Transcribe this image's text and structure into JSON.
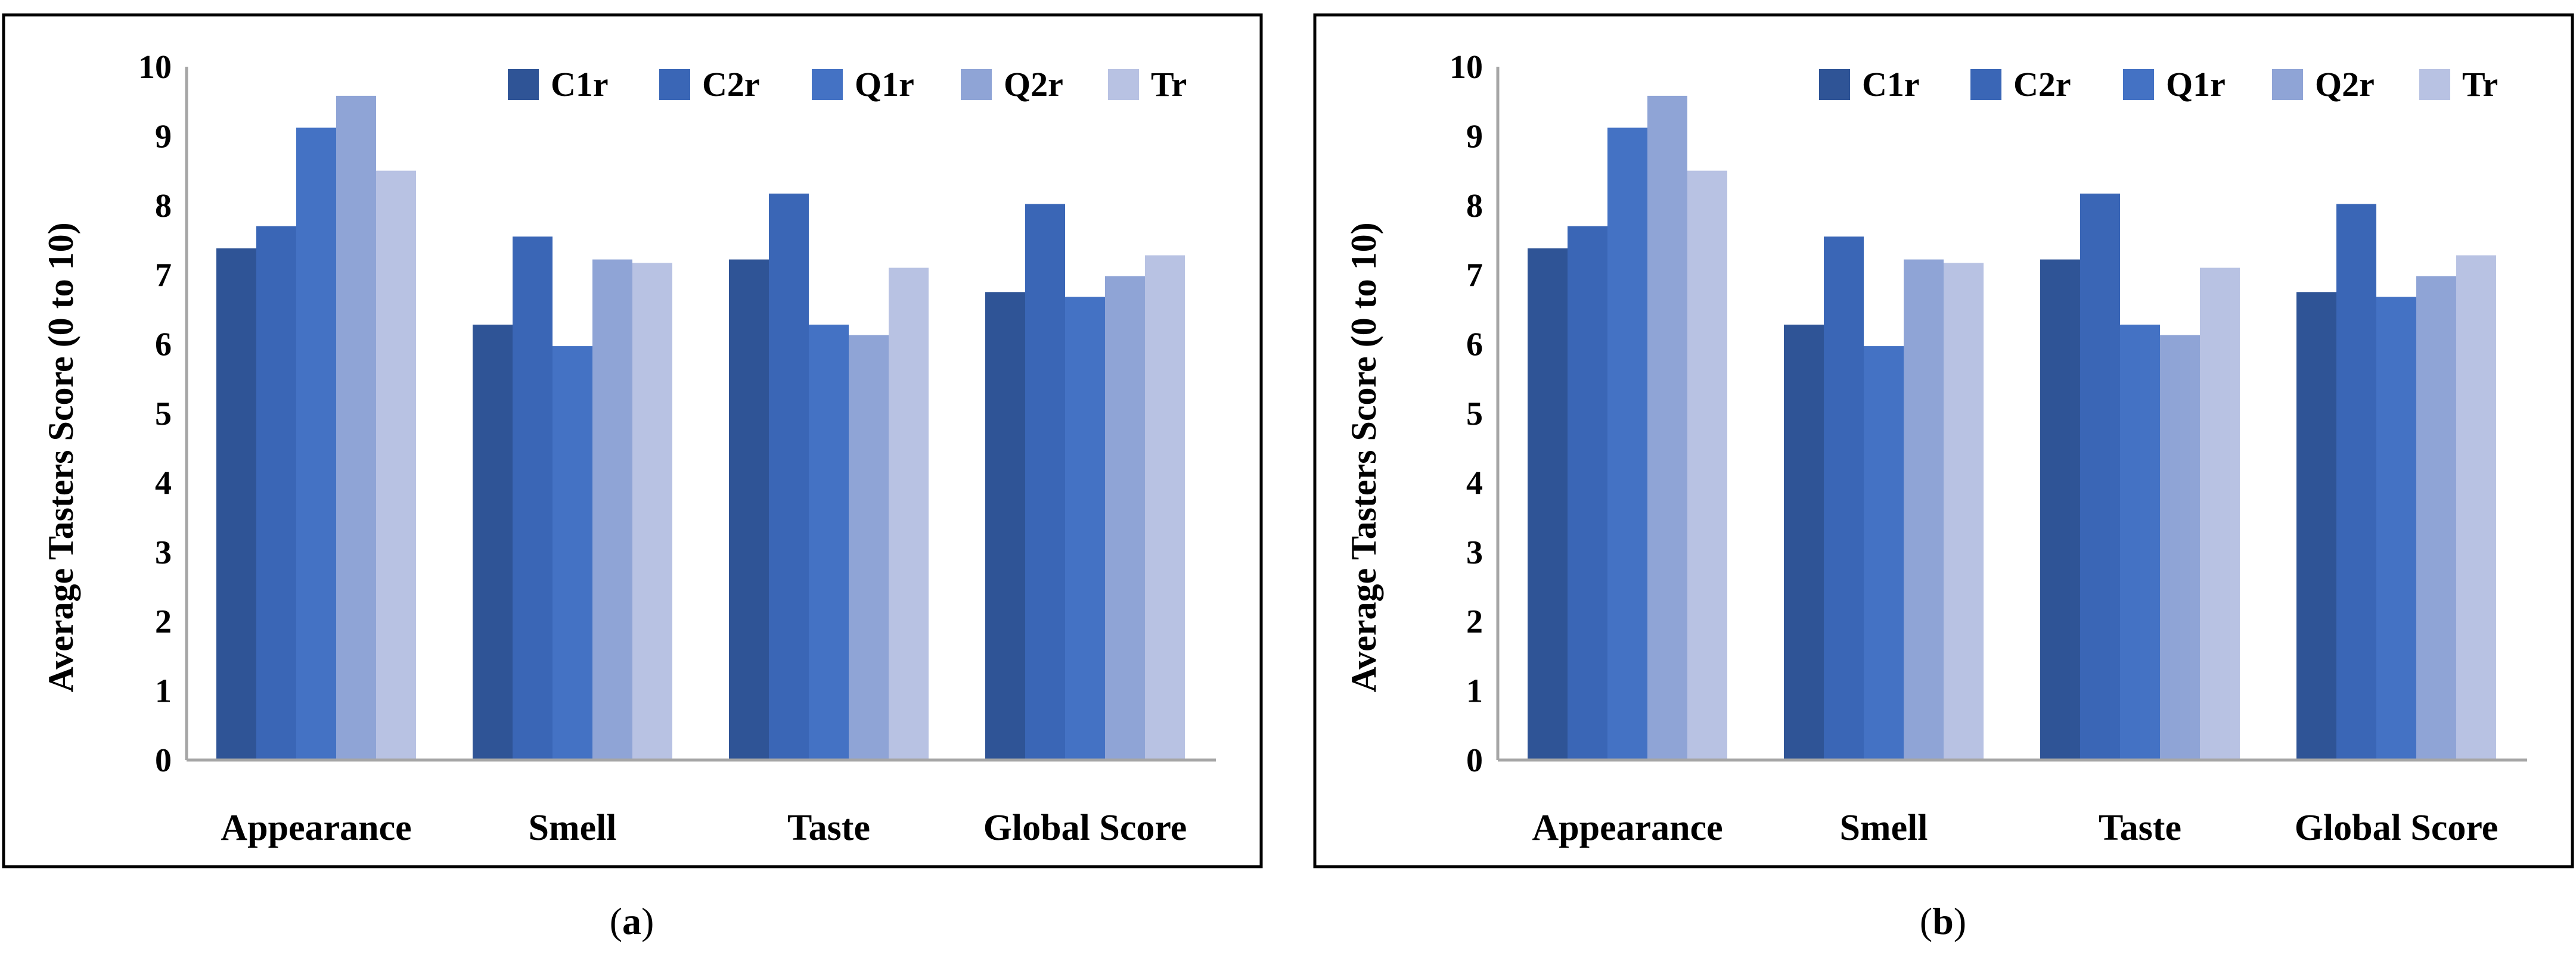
{
  "chart_data": [
    {
      "type": "bar",
      "panel_label": "a",
      "categories": [
        "Appearance",
        "Smell",
        "Taste",
        "Global Score"
      ],
      "series": [
        {
          "name": "C1r",
          "values": [
            7.38,
            6.28,
            7.22,
            6.75
          ]
        },
        {
          "name": "C2r",
          "values": [
            7.7,
            7.55,
            8.17,
            8.02
          ]
        },
        {
          "name": "Q1r",
          "values": [
            9.12,
            5.97,
            6.28,
            6.68
          ]
        },
        {
          "name": "Q2r",
          "values": [
            9.58,
            7.22,
            6.13,
            6.98
          ]
        },
        {
          "name": "Tr",
          "values": [
            8.5,
            7.17,
            7.1,
            7.28
          ]
        }
      ],
      "title": "",
      "xlabel": "",
      "ylabel": "Average Tasters Score (0 to 10)",
      "ylim": [
        0,
        10
      ],
      "yticks": [
        0,
        1,
        2,
        3,
        4,
        5,
        6,
        7,
        8,
        9,
        10
      ],
      "grid": false,
      "legend_position": "top-right"
    },
    {
      "type": "bar",
      "panel_label": "b",
      "categories": [
        "Appearance",
        "Smell",
        "Taste",
        "Global Score"
      ],
      "series": [
        {
          "name": "C1r",
          "values": [
            7.38,
            6.28,
            7.22,
            6.75
          ]
        },
        {
          "name": "C2r",
          "values": [
            7.7,
            7.55,
            8.17,
            8.02
          ]
        },
        {
          "name": "Q1r",
          "values": [
            9.12,
            5.97,
            6.28,
            6.68
          ]
        },
        {
          "name": "Q2r",
          "values": [
            9.58,
            7.22,
            6.13,
            6.98
          ]
        },
        {
          "name": "Tr",
          "values": [
            8.5,
            7.17,
            7.1,
            7.28
          ]
        }
      ],
      "title": "",
      "xlabel": "",
      "ylabel": "Average Tasters Score (0 to 10)",
      "ylim": [
        0,
        10
      ],
      "yticks": [
        0,
        1,
        2,
        3,
        4,
        5,
        6,
        7,
        8,
        9,
        10
      ],
      "grid": false,
      "legend_position": "top-right"
    }
  ],
  "colors": {
    "C1r": "#2f5496",
    "C2r": "#3a66b6",
    "Q1r": "#4472c4",
    "Q2r": "#8fa4d6",
    "Tr": "#b8c2e3",
    "axis": "#a6a6a6",
    "frame": "#000000"
  },
  "captions": [
    {
      "open": "(",
      "letter": "a",
      "close": ")"
    },
    {
      "open": "(",
      "letter": "b",
      "close": ")"
    }
  ]
}
